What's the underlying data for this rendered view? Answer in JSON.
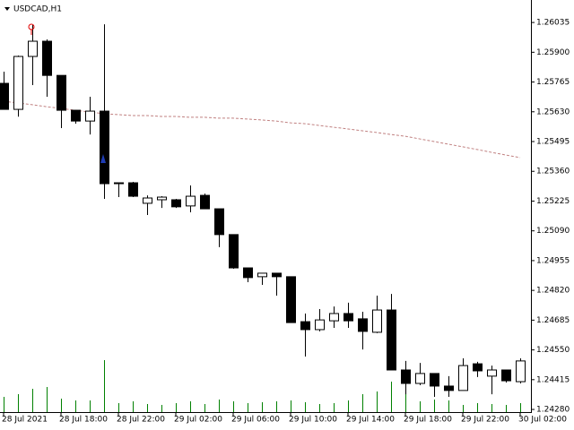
{
  "chart_data": {
    "type": "candlestick",
    "title": "USDCAD,H1",
    "categories": [
      "28 Jul 2021",
      null,
      null,
      null,
      "28 Jul 18:00",
      null,
      null,
      null,
      "28 Jul 22:00",
      null,
      null,
      null,
      "29 Jul 02:00",
      null,
      null,
      null,
      "29 Jul 06:00",
      null,
      null,
      null,
      "29 Jul 10:00",
      null,
      null,
      null,
      "29 Jul 14:00",
      null,
      null,
      null,
      "29 Jul 18:00",
      null,
      null,
      null,
      "29 Jul 22:00",
      null,
      null,
      null,
      "30 Jul 02:00"
    ],
    "open": [
      1.25759,
      1.25641,
      1.25881,
      1.2595,
      1.25795,
      1.25637,
      1.25588,
      1.25633,
      1.25308,
      1.25308,
      1.25215,
      1.25231,
      1.25231,
      1.25203,
      1.25251,
      1.2519,
      1.25073,
      1.24922,
      1.24882,
      1.24898,
      1.24882,
      1.24678,
      1.24642,
      1.24682,
      1.24715,
      1.24691,
      1.2463,
      1.24731,
      1.24459,
      1.24398,
      1.24443,
      1.24386,
      1.24366,
      1.24487,
      1.24431,
      1.24459,
      1.24406
    ],
    "close": [
      1.25641,
      1.25881,
      1.2595,
      1.25795,
      1.25637,
      1.25588,
      1.25633,
      1.25304,
      1.25304,
      1.25247,
      1.25239,
      1.25243,
      1.25199,
      1.25247,
      1.2519,
      1.25073,
      1.24922,
      1.24878,
      1.24898,
      1.24882,
      1.24674,
      1.24642,
      1.24686,
      1.24715,
      1.24682,
      1.24634,
      1.24731,
      1.24459,
      1.24398,
      1.24443,
      1.24386,
      1.24366,
      1.24479,
      1.24455,
      1.24459,
      1.2441,
      1.245
    ],
    "high": [
      1.25812,
      1.25885,
      1.26023,
      1.25958,
      1.25795,
      1.25637,
      1.25698,
      1.26027,
      1.25308,
      1.25312,
      1.25251,
      1.25247,
      1.25235,
      1.25296,
      1.25259,
      1.2519,
      1.25073,
      1.24922,
      1.24898,
      1.24898,
      1.24882,
      1.24715,
      1.24735,
      1.24747,
      1.24764,
      1.24723,
      1.24796,
      1.24804,
      1.245,
      1.24491,
      1.24443,
      1.24431,
      1.24512,
      1.24496,
      1.24479,
      1.24459,
      1.24512
    ],
    "low": [
      1.25641,
      1.25608,
      1.25751,
      1.25698,
      1.25556,
      1.25576,
      1.25527,
      1.25235,
      1.25243,
      1.25243,
      1.25162,
      1.25194,
      1.25194,
      1.25174,
      1.2519,
      1.25016,
      1.24918,
      1.24857,
      1.24845,
      1.24796,
      1.24674,
      1.2452,
      1.24634,
      1.2465,
      1.2465,
      1.24552,
      1.24626,
      1.24459,
      1.24349,
      1.2439,
      1.24337,
      1.24337,
      1.24366,
      1.24427,
      1.24349,
      1.24402,
      1.24398
    ],
    "moving_average": {
      "color": "#c08080",
      "values": [
        1.25678,
        1.2567,
        1.25662,
        1.25653,
        1.25645,
        1.25637,
        1.25629,
        1.25621,
        1.25617,
        1.25613,
        1.25613,
        1.25609,
        1.25609,
        1.25605,
        1.25605,
        1.25601,
        1.25601,
        1.25597,
        1.25593,
        1.25588,
        1.2558,
        1.25576,
        1.25568,
        1.2556,
        1.25552,
        1.25544,
        1.25536,
        1.25527,
        1.25519,
        1.25507,
        1.25495,
        1.25483,
        1.25471,
        1.25459,
        1.25446,
        1.25434,
        1.25422
      ]
    },
    "volume": {
      "color": "#008000",
      "lim": [
        0,
        60
      ],
      "values": [
        17,
        20,
        26,
        28,
        15,
        13,
        13,
        58,
        10,
        12,
        9,
        8,
        10,
        12,
        9,
        14,
        12,
        10,
        11,
        12,
        13,
        11,
        9,
        10,
        13,
        20,
        23,
        34,
        20,
        12,
        14,
        13,
        8,
        10,
        9,
        8,
        10
      ]
    },
    "bull_color": "#ffffff",
    "bear_color": "#000000",
    "ylim": [
      1.24268,
      1.26137
    ],
    "yticks": [
      1.26035,
      {
        "value": 1.259,
        "label": "1.25900"
      },
      1.25765,
      {
        "value": 1.2563,
        "label": "1.25630"
      },
      1.25495,
      {
        "value": 1.2536,
        "label": "1.25360"
      },
      1.25225,
      {
        "value": 1.2509,
        "label": "1.25090"
      },
      1.24955,
      {
        "value": 1.2482,
        "label": "1.24820"
      },
      1.24685,
      {
        "value": 1.2455,
        "label": "1.24550"
      },
      1.24415,
      {
        "value": 1.2428,
        "label": "1.24280"
      }
    ]
  }
}
